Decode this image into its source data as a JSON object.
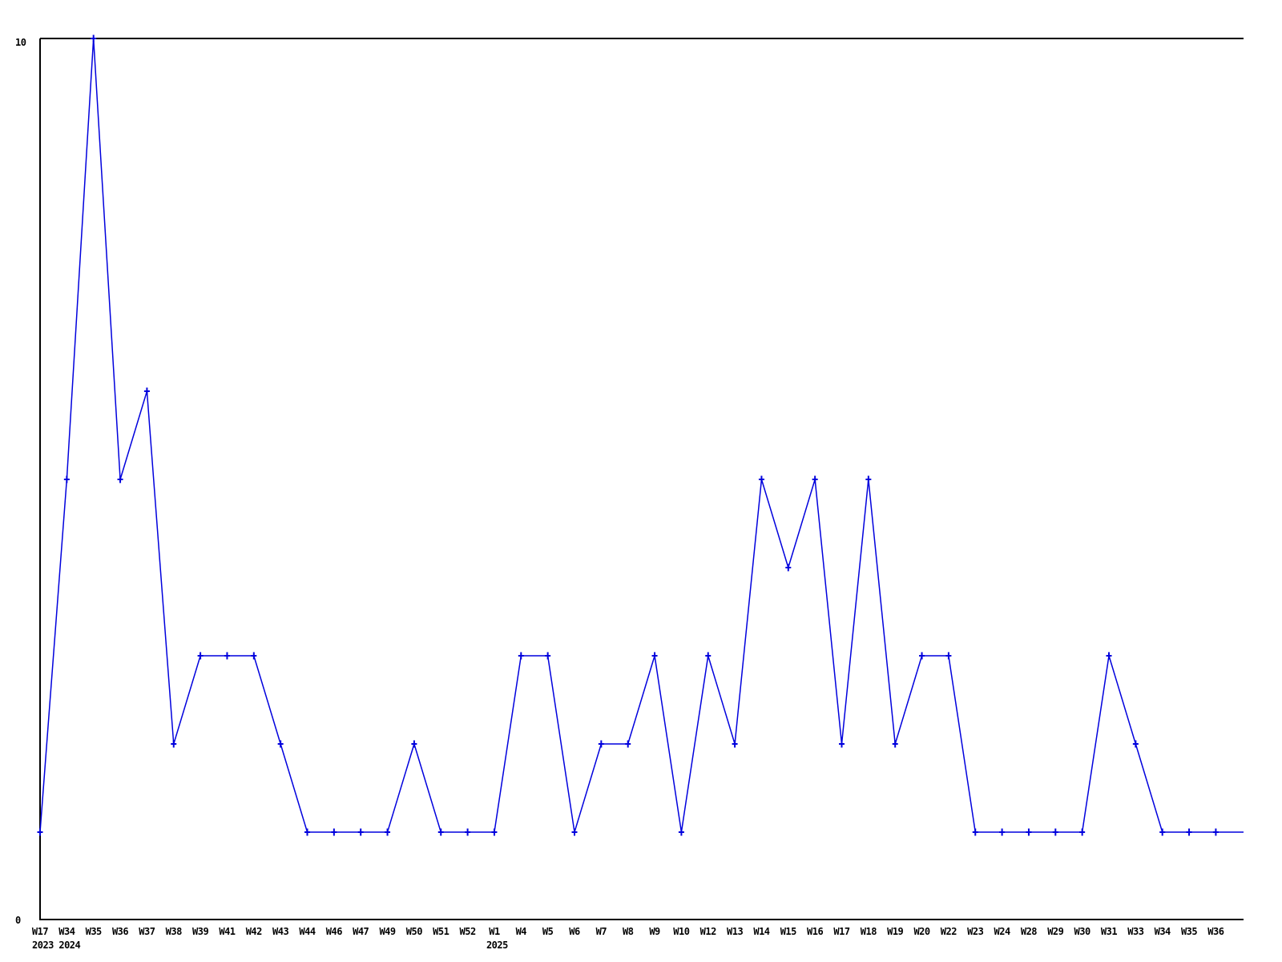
{
  "chart_data": {
    "type": "line",
    "title": "",
    "xlabel": "",
    "ylabel": "",
    "ylim": [
      0,
      10
    ],
    "grid": false,
    "legend": null,
    "marker_style": "plus",
    "series_color": "#0000dd",
    "axis_color": "#000000",
    "text_color": "#000000",
    "background_color": "#ffffff",
    "y_ticks": [
      {
        "value": 10,
        "label": "10"
      },
      {
        "value": 0,
        "label": "0"
      }
    ],
    "categories": [
      "W17",
      "W34",
      "W35",
      "W36",
      "W37",
      "W38",
      "W39",
      "W41",
      "W42",
      "W43",
      "W44",
      "W46",
      "W47",
      "W49",
      "W50",
      "W51",
      "W52",
      "W1",
      "W4",
      "W5",
      "W6",
      "W7",
      "W8",
      "W9",
      "W10",
      "W12",
      "W13",
      "W14",
      "W15",
      "W16",
      "W17",
      "W18",
      "W19",
      "W20",
      "W22",
      "W23",
      "W24",
      "W28",
      "W29",
      "W30",
      "W31",
      "W33",
      "W34",
      "W35",
      "W36"
    ],
    "values": [
      1,
      5,
      10,
      5,
      6,
      2,
      3,
      3,
      3,
      2,
      1,
      1,
      1,
      1,
      2,
      1,
      1,
      1,
      3,
      3,
      1,
      2,
      2,
      3,
      1,
      3,
      2,
      5,
      4,
      5,
      2,
      5,
      2,
      3,
      3,
      1,
      1,
      1,
      1,
      1,
      3,
      2,
      1,
      1,
      1
    ],
    "year_markers": [
      {
        "index": 0,
        "label": "2023"
      },
      {
        "index": 1,
        "label": "2024"
      },
      {
        "index": 17,
        "label": "2025"
      }
    ],
    "line_extends_to_right_edge_at_value": 1
  }
}
